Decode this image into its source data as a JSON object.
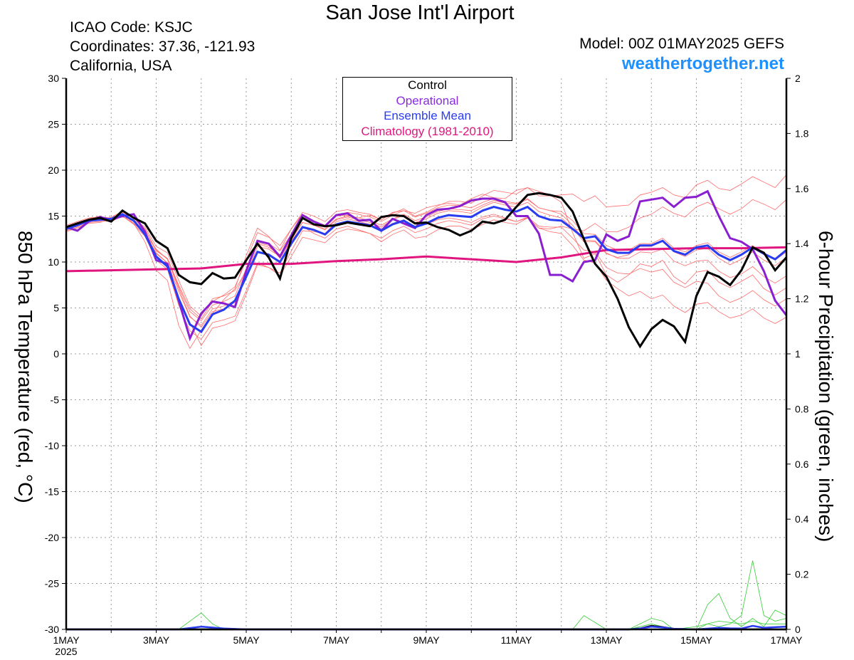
{
  "header": {
    "title": "San Jose Int'l Airport",
    "icao": "ICAO Code: KSJC",
    "coords": "Coordinates: 37.36, -121.93",
    "region": "California, USA",
    "model": "Model: 00Z 01MAY2025 GEFS",
    "site": "weathertogether.net"
  },
  "legend": [
    {
      "label": "Control",
      "color": "#000000"
    },
    {
      "label": "Operational",
      "color": "#8a2be2"
    },
    {
      "label": "Ensemble Mean",
      "color": "#2a3cf0"
    },
    {
      "label": "Climatology (1981-2010)",
      "color": "#e0157f"
    }
  ],
  "colors": {
    "members": "#ff6b6b",
    "precip_members": "#33cc33",
    "control": "#000000",
    "operational": "#8a1fd0",
    "mean": "#2a3cf0",
    "climatology": "#e0157f",
    "grid": "#9a9a9a"
  },
  "chart_data": {
    "type": "line",
    "xlabel": "",
    "ylabel": "850 hPa Temperature (red, °C)",
    "ylabel_right": "6-hour Precipitation (green, inches)",
    "xlim": [
      0,
      16
    ],
    "ylim": [
      -30,
      30
    ],
    "ylim_right": [
      0,
      2
    ],
    "x_ticks": [
      {
        "x": 0,
        "label": "1MAY",
        "sub": "2025"
      },
      {
        "x": 2,
        "label": "3MAY"
      },
      {
        "x": 4,
        "label": "5MAY"
      },
      {
        "x": 6,
        "label": "7MAY"
      },
      {
        "x": 8,
        "label": "9MAY"
      },
      {
        "x": 10,
        "label": "11MAY"
      },
      {
        "x": 12,
        "label": "13MAY"
      },
      {
        "x": 14,
        "label": "15MAY"
      },
      {
        "x": 16,
        "label": "17MAY"
      }
    ],
    "y_ticks": [
      30,
      25,
      20,
      15,
      10,
      5,
      0,
      -5,
      -10,
      -15,
      -20,
      -25,
      -30
    ],
    "y_ticks_right": [
      "2",
      "1.8",
      "1.6",
      "1.4",
      "1.2",
      "1",
      "0.8",
      "0.6",
      "0.4",
      "0.2",
      "0"
    ],
    "grid": true,
    "x_unit": "days since 1MAY 00Z",
    "series": [
      {
        "name": "Control",
        "x": [
          0,
          0.25,
          0.5,
          0.75,
          1,
          1.25,
          1.5,
          1.75,
          2,
          2.25,
          2.5,
          2.75,
          3,
          3.25,
          3.5,
          3.75,
          4,
          4.25,
          4.5,
          4.75,
          5,
          5.25,
          5.5,
          5.75,
          6,
          6.25,
          6.5,
          6.75,
          7,
          7.25,
          7.5,
          7.75,
          8,
          8.25,
          8.5,
          8.75,
          9,
          9.25,
          9.5,
          9.75,
          10,
          10.25,
          10.5,
          10.75,
          11,
          11.25,
          11.5,
          11.75,
          12,
          12.25,
          12.5,
          12.75,
          13,
          13.25,
          13.5,
          13.75,
          14,
          14.25,
          14.5,
          14.75,
          15,
          15.25,
          15.5,
          15.75,
          16
        ],
        "values": [
          13.8,
          14.2,
          14.6,
          14.8,
          14.4,
          15.6,
          14.8,
          14.2,
          12.3,
          11.5,
          8.6,
          7.8,
          7.6,
          8.8,
          8.2,
          8.3,
          10.2,
          12.0,
          10.5,
          8.2,
          12.6,
          14.8,
          14.1,
          13.9,
          14.0,
          14.3,
          14.1,
          13.9,
          14.9,
          15.1,
          15.0,
          14.2,
          14.3,
          13.8,
          13.5,
          12.9,
          13.4,
          14.4,
          14.2,
          14.6,
          16.0,
          17.3,
          17.5,
          17.3,
          17.0,
          15.5,
          12.5,
          9.8,
          8.4,
          6.0,
          2.9,
          0.8,
          2.7,
          3.7,
          3.0,
          1.3,
          6.3,
          8.9,
          8.4,
          7.5,
          9.1,
          11.6,
          11.0,
          9.1,
          10.5
        ]
      },
      {
        "name": "Operational",
        "x": [
          0,
          0.25,
          0.5,
          0.75,
          1,
          1.25,
          1.5,
          1.75,
          2,
          2.25,
          2.5,
          2.75,
          3,
          3.25,
          3.5,
          3.75,
          4,
          4.25,
          4.5,
          4.75,
          5,
          5.25,
          5.5,
          5.75,
          6,
          6.25,
          6.5,
          6.75,
          7,
          7.25,
          7.5,
          7.75,
          8,
          8.25,
          8.5,
          8.75,
          9,
          9.25,
          9.5,
          9.75,
          10,
          10.25,
          10.5,
          10.75,
          11,
          11.25,
          11.5,
          11.75,
          12,
          12.25,
          12.5,
          12.75,
          13,
          13.25,
          13.5,
          13.75,
          14,
          14.25,
          14.5,
          14.75,
          15,
          15.25,
          15.5,
          15.75,
          16
        ],
        "values": [
          13.8,
          13.4,
          14.4,
          14.9,
          14.6,
          15.0,
          15.2,
          13.3,
          10.2,
          9.8,
          5.8,
          1.7,
          4.4,
          5.7,
          5.5,
          5.1,
          9.0,
          12.3,
          12.0,
          10.6,
          12.9,
          15.1,
          14.4,
          13.9,
          15.1,
          15.3,
          14.5,
          14.6,
          13.4,
          14.7,
          14.2,
          13.7,
          15.1,
          15.7,
          15.8,
          16.1,
          16.7,
          16.9,
          16.9,
          16.5,
          15.0,
          15.0,
          13.1,
          8.6,
          8.6,
          7.9,
          10.0,
          10.2,
          13.0,
          12.3,
          12.8,
          16.6,
          16.8,
          17.0,
          16.0,
          17.0,
          17.1,
          17.7,
          15.0,
          12.6,
          12.2,
          11.4,
          9.0,
          5.8,
          4.2
        ]
      },
      {
        "name": "Ensemble Mean",
        "x": [
          0,
          0.25,
          0.5,
          0.75,
          1,
          1.25,
          1.5,
          1.75,
          2,
          2.25,
          2.5,
          2.75,
          3,
          3.25,
          3.5,
          3.75,
          4,
          4.25,
          4.5,
          4.75,
          5,
          5.25,
          5.5,
          5.75,
          6,
          6.25,
          6.5,
          6.75,
          7,
          7.25,
          7.5,
          7.75,
          8,
          8.25,
          8.5,
          8.75,
          9,
          9.25,
          9.5,
          9.75,
          10,
          10.25,
          10.5,
          10.75,
          11,
          11.25,
          11.5,
          11.75,
          12,
          12.25,
          12.5,
          12.75,
          13,
          13.25,
          13.5,
          13.75,
          14,
          14.25,
          14.5,
          14.75,
          15,
          15.25,
          15.5,
          15.75,
          16
        ],
        "values": [
          13.6,
          14.0,
          14.5,
          14.6,
          14.7,
          15.2,
          14.5,
          13.0,
          10.6,
          9.5,
          6.0,
          3.2,
          2.4,
          4.3,
          4.8,
          5.8,
          8.4,
          11.1,
          10.8,
          10.0,
          12.0,
          13.8,
          13.5,
          13.0,
          14.1,
          14.4,
          14.2,
          14.0,
          13.4,
          14.1,
          14.5,
          13.8,
          14.2,
          14.8,
          15.1,
          15.0,
          14.9,
          15.6,
          16.0,
          15.7,
          15.5,
          16.0,
          15.0,
          14.6,
          14.5,
          13.6,
          12.6,
          12.8,
          11.4,
          11.0,
          11.0,
          11.8,
          11.8,
          12.3,
          11.2,
          10.8,
          11.6,
          11.8,
          10.8,
          10.2,
          10.8,
          11.6,
          10.9,
          10.3,
          11.3
        ]
      },
      {
        "name": "Climatology (1981-2010)",
        "x": [
          0,
          1,
          2,
          3,
          4,
          5,
          6,
          7,
          8,
          9,
          10,
          11,
          12,
          13,
          14,
          15,
          16
        ],
        "values": [
          9.0,
          9.1,
          9.2,
          9.3,
          9.8,
          9.8,
          10.1,
          10.3,
          10.6,
          10.3,
          10.0,
          10.5,
          11.3,
          11.4,
          11.5,
          11.5,
          11.6
        ]
      }
    ],
    "members": [
      [
        13.9,
        14.3,
        14.7,
        15.0,
        14.5,
        15.3,
        14.2,
        12.2,
        9.1,
        8.0,
        3.1,
        0.6,
        2.6,
        4.4,
        5.9,
        7.1,
        10.7,
        13.7,
        12.8,
        11.3,
        13.6,
        15.2,
        14.5,
        14.0,
        15.0,
        15.1,
        14.8,
        15.1,
        14.6,
        15.4,
        15.6,
        15.3,
        15.9,
        16.2,
        16.4,
        16.2,
        16.9,
        17.4,
        17.0,
        16.9,
        17.8,
        18.1,
        17.7,
        17.3,
        16.5,
        13.2,
        10.4,
        10.9,
        8.6,
        7.8,
        8.6,
        9.8,
        9.5,
        10.2,
        8.4,
        7.6,
        8.9,
        9.1,
        7.8,
        7.2,
        7.9,
        8.6,
        7.1,
        6.4,
        7.2
      ],
      [
        13.3,
        13.7,
        14.2,
        14.3,
        14.8,
        14.9,
        14.6,
        13.8,
        11.7,
        11.0,
        8.0,
        5.2,
        4.1,
        6.0,
        6.3,
        6.9,
        9.1,
        12.1,
        11.8,
        10.4,
        12.3,
        13.9,
        13.1,
        12.6,
        13.6,
        13.9,
        13.5,
        13.1,
        12.2,
        13.0,
        13.5,
        12.6,
        12.8,
        13.5,
        13.9,
        13.9,
        13.5,
        14.1,
        14.6,
        14.3,
        14.1,
        14.8,
        13.7,
        13.6,
        13.9,
        13.6,
        13.4,
        14.2,
        13.3,
        13.3,
        13.8,
        14.8,
        15.2,
        16.0,
        15.3,
        14.9,
        16.0,
        16.5,
        15.8,
        15.2,
        15.8,
        16.8,
        16.3,
        15.7,
        16.8
      ],
      [
        13.7,
        14.1,
        14.5,
        14.6,
        14.6,
        15.0,
        14.2,
        13.1,
        11.0,
        9.9,
        6.1,
        3.4,
        0.9,
        2.8,
        3.1,
        3.6,
        6.5,
        9.7,
        9.4,
        8.8,
        11.2,
        13.4,
        13.3,
        13.1,
        14.4,
        14.7,
        14.4,
        14.1,
        13.5,
        14.2,
        14.6,
        13.8,
        14.1,
        14.6,
        14.8,
        14.6,
        14.3,
        14.9,
        15.2,
        14.8,
        14.4,
        14.8,
        13.7,
        13.3,
        13.1,
        11.8,
        10.2,
        9.9,
        8.0,
        7.1,
        6.3,
        6.8,
        6.0,
        6.4,
        5.2,
        4.5,
        5.4,
        5.6,
        4.6,
        3.9,
        4.2,
        4.9,
        3.9,
        3.3,
        4.0
      ],
      [
        13.5,
        13.9,
        14.4,
        14.5,
        14.9,
        15.5,
        14.9,
        13.6,
        11.2,
        10.4,
        7.5,
        4.9,
        3.8,
        5.7,
        6.4,
        7.3,
        10.2,
        13.2,
        12.7,
        11.8,
        13.6,
        15.4,
        15.0,
        14.4,
        15.5,
        15.7,
        15.4,
        15.2,
        14.6,
        15.3,
        15.8,
        15.0,
        15.4,
        16.1,
        16.6,
        16.6,
        16.4,
        17.2,
        17.8,
        17.6,
        17.4,
        18.1,
        17.2,
        17.2,
        17.3,
        17.4,
        16.6,
        17.2,
        16.0,
        16.1,
        16.2,
        17.3,
        17.6,
        18.1,
        17.3,
        17.0,
        18.4,
        18.9,
        18.0,
        17.8,
        18.5,
        19.3,
        18.7,
        18.1,
        19.5
      ],
      [
        13.8,
        14.2,
        14.6,
        14.7,
        14.4,
        15.0,
        14.1,
        12.8,
        10.2,
        9.2,
        5.3,
        2.5,
        1.6,
        3.4,
        3.7,
        4.1,
        6.9,
        9.9,
        9.4,
        8.5,
        10.6,
        12.7,
        12.4,
        12.1,
        13.2,
        13.6,
        13.4,
        13.1,
        12.6,
        13.4,
        13.9,
        13.2,
        13.6,
        14.2,
        14.5,
        14.3,
        14.0,
        14.7,
        15.0,
        14.7,
        14.4,
        14.9,
        13.9,
        13.8,
        13.8,
        12.6,
        11.3,
        11.1,
        9.4,
        8.8,
        8.7,
        9.3,
        8.9,
        9.2,
        7.8,
        7.2,
        7.9,
        7.7,
        6.3,
        5.6,
        6.1,
        6.9,
        5.9,
        5.2,
        6.0
      ],
      [
        13.6,
        14.0,
        14.5,
        14.6,
        14.7,
        15.2,
        14.6,
        13.3,
        10.9,
        9.9,
        6.8,
        4.0,
        3.1,
        4.9,
        5.2,
        5.8,
        8.9,
        12.0,
        11.6,
        10.8,
        12.6,
        14.3,
        14.0,
        13.5,
        14.6,
        14.9,
        14.6,
        14.3,
        13.8,
        14.6,
        15.1,
        14.3,
        14.7,
        15.3,
        15.6,
        15.5,
        15.3,
        16.0,
        16.5,
        16.2,
        16.0,
        16.5,
        15.5,
        15.1,
        14.8,
        13.7,
        12.2,
        12.2,
        10.9,
        10.5,
        10.8,
        11.7,
        11.7,
        12.3,
        11.1,
        10.6,
        11.3,
        11.5,
        10.4,
        9.7,
        10.3,
        11.1,
        10.2,
        9.6,
        10.5
      ],
      [
        13.4,
        13.8,
        14.3,
        14.4,
        14.5,
        15.1,
        14.5,
        13.1,
        11.4,
        10.3,
        7.1,
        4.1,
        2.9,
        4.6,
        4.9,
        5.6,
        8.5,
        11.7,
        11.4,
        10.6,
        12.4,
        14.3,
        14.0,
        13.6,
        14.7,
        15.0,
        14.8,
        14.5,
        14.0,
        14.7,
        15.2,
        14.5,
        14.9,
        15.5,
        15.8,
        15.7,
        15.6,
        16.2,
        16.7,
        16.4,
        16.3,
        16.8,
        15.9,
        15.6,
        15.5,
        14.5,
        13.1,
        13.0,
        11.8,
        11.3,
        11.3,
        12.0,
        12.0,
        12.6,
        11.5,
        11.1,
        11.8,
        12.1,
        11.1,
        10.5,
        11.1,
        11.8,
        10.9,
        10.2,
        11.1
      ],
      [
        14.0,
        14.4,
        14.8,
        14.9,
        14.8,
        15.4,
        14.8,
        13.6,
        11.3,
        10.3,
        7.3,
        4.6,
        3.6,
        5.3,
        5.7,
        6.3,
        9.3,
        12.4,
        12.0,
        11.2,
        13.0,
        14.7,
        14.4,
        14.0,
        15.1,
        15.4,
        15.2,
        14.9,
        14.4,
        15.1,
        15.6,
        14.9,
        15.3,
        15.9,
        16.2,
        16.1,
        15.9,
        16.5,
        16.9,
        16.6,
        16.4,
        16.9,
        15.9,
        15.6,
        15.2,
        14.0,
        12.4,
        12.3,
        11.0,
        10.4,
        10.4,
        11.1,
        11.0,
        11.4,
        10.1,
        9.6,
        10.1,
        10.2,
        9.0,
        8.3,
        8.7,
        9.5,
        8.4,
        7.7,
        8.5
      ]
    ],
    "precip_members": [
      {
        "x": [
          0,
          2.5,
          2.75,
          3,
          3.25,
          3.5,
          4
        ],
        "values": [
          0,
          0,
          0.03,
          0.06,
          0.02,
          0,
          0
        ]
      },
      {
        "x": [
          0,
          11.25,
          11.5,
          12,
          12.5,
          13,
          13.25,
          13.5,
          14,
          14.25,
          14.5,
          14.75,
          15,
          15.25,
          15.5,
          15.75,
          16
        ],
        "values": [
          0,
          0,
          0.05,
          0,
          0,
          0.04,
          0.03,
          0,
          0,
          0.09,
          0.13,
          0.04,
          0.01,
          0.04,
          0.01,
          0.07,
          0.05
        ]
      },
      {
        "x": [
          0,
          12.5,
          13,
          13.5,
          14,
          14.25,
          14.5,
          14.75,
          15,
          15.25,
          15.5,
          15.75,
          16
        ],
        "values": [
          0,
          0,
          0.02,
          0,
          0,
          0.02,
          0.01,
          0.02,
          0.05,
          0.25,
          0.05,
          0.03,
          0.04
        ]
      },
      {
        "x": [
          0,
          12.75,
          13,
          13.5,
          14,
          14.5,
          15,
          15.25,
          15.5,
          15.75,
          16
        ],
        "values": [
          0,
          0,
          0.01,
          0,
          0.01,
          0.03,
          0.02,
          0.03,
          0.02,
          0.02,
          0.02
        ]
      }
    ],
    "precip_mean": {
      "x": [
        0,
        2.5,
        2.75,
        3,
        3.5,
        4,
        12.5,
        12.75,
        13,
        13.25,
        13.5,
        14,
        14.5,
        14.75,
        15,
        15.25,
        15.5,
        15.75,
        16
      ],
      "values": [
        0,
        0,
        0.005,
        0.01,
        0.003,
        0,
        0,
        0.003,
        0.01,
        0.007,
        0.002,
        0,
        0.006,
        0.004,
        0.003,
        0.013,
        0.006,
        0.008,
        0.01
      ]
    },
    "precip_control": {
      "x": [
        0,
        12.5,
        12.75,
        13,
        13.25,
        13.5,
        14,
        16
      ],
      "values": [
        0,
        0,
        0.003,
        0.013,
        0.008,
        0.002,
        0,
        0
      ]
    }
  }
}
